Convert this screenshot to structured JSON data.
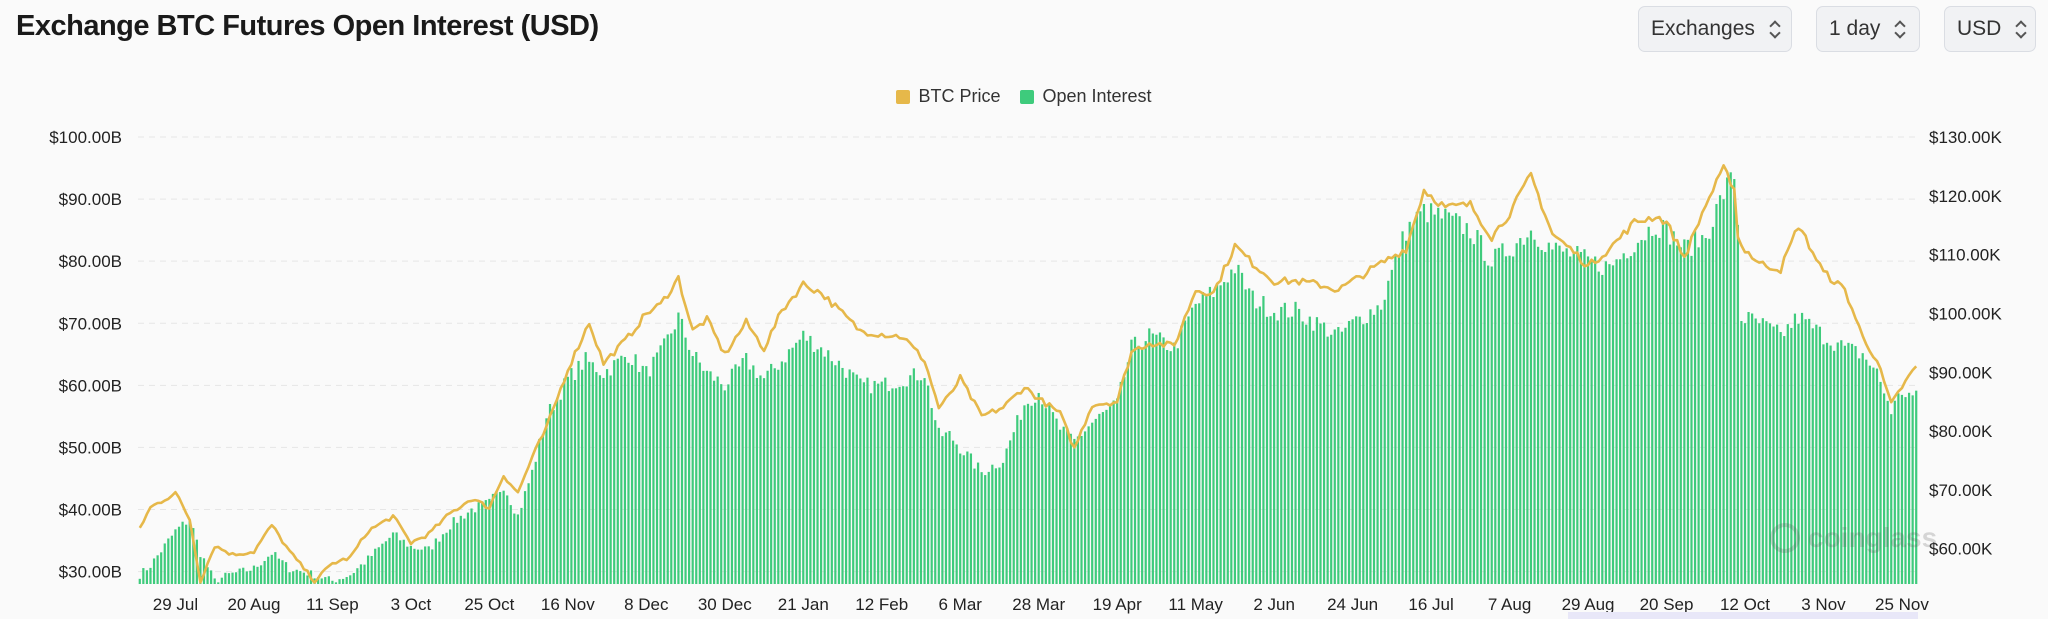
{
  "header": {
    "title": "Exchange BTC Futures Open Interest (USD)",
    "selectors": [
      {
        "value": "Exchanges",
        "icon": "chevron-up-down-icon"
      },
      {
        "value": "1 day",
        "icon": "chevron-up-down-icon"
      },
      {
        "value": "USD",
        "icon": "chevron-up-down-icon"
      }
    ]
  },
  "watermark": {
    "text": "coinglass",
    "icon": "coinglass-logo-icon"
  },
  "colors": {
    "open_interest": "#3ecb7c",
    "btc_price": "#e6b84a",
    "grid": "#e6e6e6"
  },
  "chart_data": {
    "type": "bar",
    "title": "",
    "legend": {
      "position": "top-center",
      "entries": [
        "BTC Price",
        "Open Interest"
      ]
    },
    "grid": true,
    "x_start_date": "2024-07-19",
    "x_interval": "1 day",
    "x_ticks": [
      "29 Jul",
      "20 Aug",
      "11 Sep",
      "3 Oct",
      "25 Oct",
      "16 Nov",
      "8 Dec",
      "30 Dec",
      "21 Jan",
      "12 Feb",
      "6 Mar",
      "28 Mar",
      "19 Apr",
      "11 May",
      "2 Jun",
      "24 Jun",
      "16 Jul",
      "7 Aug",
      "29 Aug",
      "20 Sep",
      "12 Oct",
      "3 Nov",
      "25 Nov"
    ],
    "y_left": {
      "ticks": [
        30,
        40,
        50,
        60,
        70,
        80,
        90,
        100
      ],
      "tick_labels": [
        "$30.00B",
        "$40.00B",
        "$50.00B",
        "$60.00B",
        "$70.00B",
        "$80.00B",
        "$90.00B",
        "$100.00B"
      ],
      "range": [
        28,
        100
      ]
    },
    "y_right": {
      "ticks": [
        60000,
        70000,
        80000,
        90000,
        100000,
        110000,
        120000,
        130000
      ],
      "tick_labels": [
        "$60.00K",
        "$70.00K",
        "$80.00K",
        "$90.00K",
        "$100.00K",
        "$110.00K",
        "$120.00K",
        "$130.00K"
      ],
      "range": [
        54000,
        130000
      ]
    },
    "series": [
      {
        "name": "Open Interest",
        "kind": "bar",
        "axis": "left",
        "unit": "USD billions",
        "keypoints": [
          [
            "2024-07-19",
            29.5
          ],
          [
            "2024-07-22",
            31
          ],
          [
            "2024-07-29",
            36.5
          ],
          [
            "2024-08-02",
            38.5
          ],
          [
            "2024-08-05",
            33
          ],
          [
            "2024-08-09",
            28.5
          ],
          [
            "2024-08-13",
            29.5
          ],
          [
            "2024-08-20",
            30.5
          ],
          [
            "2024-08-25",
            33
          ],
          [
            "2024-08-30",
            30.5
          ],
          [
            "2024-09-06",
            29.5
          ],
          [
            "2024-09-11",
            28.5
          ],
          [
            "2024-09-16",
            29.5
          ],
          [
            "2024-09-21",
            32
          ],
          [
            "2024-09-28",
            36
          ],
          [
            "2024-10-03",
            34
          ],
          [
            "2024-10-08",
            33.5
          ],
          [
            "2024-10-14",
            37.5
          ],
          [
            "2024-10-20",
            40
          ],
          [
            "2024-10-25",
            41
          ],
          [
            "2024-10-29",
            44
          ],
          [
            "2024-11-02",
            39
          ],
          [
            "2024-11-06",
            46
          ],
          [
            "2024-11-10",
            55
          ],
          [
            "2024-11-16",
            61
          ],
          [
            "2024-11-21",
            64
          ],
          [
            "2024-11-26",
            62
          ],
          [
            "2024-12-03",
            65
          ],
          [
            "2024-12-08",
            62
          ],
          [
            "2024-12-12",
            65
          ],
          [
            "2024-12-17",
            71
          ],
          [
            "2024-12-21",
            65
          ],
          [
            "2024-12-25",
            62
          ],
          [
            "2024-12-30",
            60
          ],
          [
            "2025-01-05",
            64
          ],
          [
            "2025-01-10",
            61
          ],
          [
            "2025-01-15",
            64
          ],
          [
            "2025-01-21",
            68
          ],
          [
            "2025-01-26",
            66
          ],
          [
            "2025-02-01",
            63
          ],
          [
            "2025-02-06",
            60
          ],
          [
            "2025-02-12",
            60
          ],
          [
            "2025-02-18",
            61
          ],
          [
            "2025-02-24",
            62
          ],
          [
            "2025-02-28",
            52
          ],
          [
            "2025-03-03",
            52
          ],
          [
            "2025-03-06",
            50
          ],
          [
            "2025-03-12",
            46
          ],
          [
            "2025-03-18",
            48
          ],
          [
            "2025-03-24",
            57
          ],
          [
            "2025-03-28",
            59
          ],
          [
            "2025-04-03",
            53
          ],
          [
            "2025-04-07",
            51
          ],
          [
            "2025-04-12",
            54
          ],
          [
            "2025-04-19",
            57
          ],
          [
            "2025-04-23",
            66
          ],
          [
            "2025-04-28",
            68
          ],
          [
            "2025-05-05",
            66
          ],
          [
            "2025-05-11",
            73
          ],
          [
            "2025-05-16",
            75
          ],
          [
            "2025-05-22",
            79
          ],
          [
            "2025-05-27",
            74
          ],
          [
            "2025-06-02",
            72
          ],
          [
            "2025-06-08",
            72
          ],
          [
            "2025-06-14",
            70
          ],
          [
            "2025-06-20",
            68
          ],
          [
            "2025-06-24",
            70
          ],
          [
            "2025-07-02",
            73
          ],
          [
            "2025-07-09",
            85
          ],
          [
            "2025-07-14",
            88
          ],
          [
            "2025-07-20",
            87
          ],
          [
            "2025-07-27",
            85
          ],
          [
            "2025-08-02",
            80
          ],
          [
            "2025-08-07",
            82
          ],
          [
            "2025-08-13",
            85
          ],
          [
            "2025-08-19",
            82
          ],
          [
            "2025-08-25",
            81
          ],
          [
            "2025-08-29",
            80
          ],
          [
            "2025-09-04",
            79
          ],
          [
            "2025-09-11",
            83
          ],
          [
            "2025-09-17",
            86
          ],
          [
            "2025-09-20",
            85
          ],
          [
            "2025-09-25",
            82
          ],
          [
            "2025-10-01",
            84
          ],
          [
            "2025-10-06",
            91
          ],
          [
            "2025-10-09",
            94
          ],
          [
            "2025-10-10",
            86
          ],
          [
            "2025-10-11",
            71
          ],
          [
            "2025-10-16",
            70
          ],
          [
            "2025-10-22",
            68
          ],
          [
            "2025-10-27",
            71
          ],
          [
            "2025-11-03",
            68
          ],
          [
            "2025-11-09",
            66
          ],
          [
            "2025-11-14",
            65
          ],
          [
            "2025-11-18",
            62
          ],
          [
            "2025-11-22",
            56
          ],
          [
            "2025-11-25",
            59
          ],
          [
            "2025-11-29",
            58
          ]
        ]
      },
      {
        "name": "BTC Price",
        "kind": "line",
        "axis": "right",
        "unit": "USD",
        "keypoints": [
          [
            "2024-07-19",
            63500
          ],
          [
            "2024-07-22",
            67000
          ],
          [
            "2024-07-29",
            69500
          ],
          [
            "2024-08-02",
            65000
          ],
          [
            "2024-08-05",
            54500
          ],
          [
            "2024-08-09",
            60500
          ],
          [
            "2024-08-14",
            59000
          ],
          [
            "2024-08-20",
            59500
          ],
          [
            "2024-08-25",
            64000
          ],
          [
            "2024-08-30",
            59500
          ],
          [
            "2024-09-06",
            54500
          ],
          [
            "2024-09-11",
            57500
          ],
          [
            "2024-09-16",
            58500
          ],
          [
            "2024-09-21",
            63000
          ],
          [
            "2024-09-28",
            65500
          ],
          [
            "2024-10-03",
            61000
          ],
          [
            "2024-10-08",
            62500
          ],
          [
            "2024-10-14",
            66000
          ],
          [
            "2024-10-20",
            68500
          ],
          [
            "2024-10-25",
            67000
          ],
          [
            "2024-10-29",
            72500
          ],
          [
            "2024-11-02",
            69500
          ],
          [
            "2024-11-06",
            75500
          ],
          [
            "2024-11-10",
            80500
          ],
          [
            "2024-11-16",
            90500
          ],
          [
            "2024-11-22",
            98500
          ],
          [
            "2024-11-26",
            91500
          ],
          [
            "2024-12-03",
            96000
          ],
          [
            "2024-12-08",
            100000
          ],
          [
            "2024-12-12",
            101500
          ],
          [
            "2024-12-17",
            106000
          ],
          [
            "2024-12-21",
            97000
          ],
          [
            "2024-12-25",
            99000
          ],
          [
            "2024-12-30",
            93000
          ],
          [
            "2025-01-05",
            98500
          ],
          [
            "2025-01-10",
            94000
          ],
          [
            "2025-01-15",
            100500
          ],
          [
            "2025-01-21",
            105000
          ],
          [
            "2025-01-26",
            103500
          ],
          [
            "2025-02-01",
            100000
          ],
          [
            "2025-02-06",
            97000
          ],
          [
            "2025-02-12",
            96500
          ],
          [
            "2025-02-18",
            96000
          ],
          [
            "2025-02-24",
            92000
          ],
          [
            "2025-02-28",
            84000
          ],
          [
            "2025-03-03",
            86000
          ],
          [
            "2025-03-06",
            89000
          ],
          [
            "2025-03-12",
            82500
          ],
          [
            "2025-03-18",
            84000
          ],
          [
            "2025-03-24",
            87500
          ],
          [
            "2025-03-28",
            85500
          ],
          [
            "2025-04-03",
            83000
          ],
          [
            "2025-04-07",
            77000
          ],
          [
            "2025-04-12",
            84500
          ],
          [
            "2025-04-19",
            85000
          ],
          [
            "2025-04-23",
            93500
          ],
          [
            "2025-04-28",
            95000
          ],
          [
            "2025-05-05",
            94500
          ],
          [
            "2025-05-11",
            104000
          ],
          [
            "2025-05-16",
            103500
          ],
          [
            "2025-05-22",
            111500
          ],
          [
            "2025-05-27",
            108500
          ],
          [
            "2025-06-02",
            105500
          ],
          [
            "2025-06-08",
            105500
          ],
          [
            "2025-06-14",
            105000
          ],
          [
            "2025-06-20",
            104000
          ],
          [
            "2025-06-24",
            105500
          ],
          [
            "2025-07-02",
            108500
          ],
          [
            "2025-07-09",
            111000
          ],
          [
            "2025-07-14",
            121000
          ],
          [
            "2025-07-20",
            118000
          ],
          [
            "2025-07-27",
            118500
          ],
          [
            "2025-08-02",
            113000
          ],
          [
            "2025-08-07",
            117000
          ],
          [
            "2025-08-13",
            123500
          ],
          [
            "2025-08-19",
            113500
          ],
          [
            "2025-08-25",
            110500
          ],
          [
            "2025-08-29",
            108000
          ],
          [
            "2025-09-04",
            111000
          ],
          [
            "2025-09-11",
            115500
          ],
          [
            "2025-09-17",
            116500
          ],
          [
            "2025-09-20",
            115500
          ],
          [
            "2025-09-25",
            109500
          ],
          [
            "2025-10-01",
            118500
          ],
          [
            "2025-10-06",
            124500
          ],
          [
            "2025-10-09",
            121500
          ],
          [
            "2025-10-10",
            113000
          ],
          [
            "2025-10-11",
            111500
          ],
          [
            "2025-10-16",
            108500
          ],
          [
            "2025-10-22",
            107500
          ],
          [
            "2025-10-27",
            115000
          ],
          [
            "2025-11-03",
            107000
          ],
          [
            "2025-11-09",
            104000
          ],
          [
            "2025-11-14",
            96000
          ],
          [
            "2025-11-18",
            92000
          ],
          [
            "2025-11-22",
            84500
          ],
          [
            "2025-11-25",
            87500
          ],
          [
            "2025-11-29",
            91000
          ]
        ]
      }
    ]
  }
}
